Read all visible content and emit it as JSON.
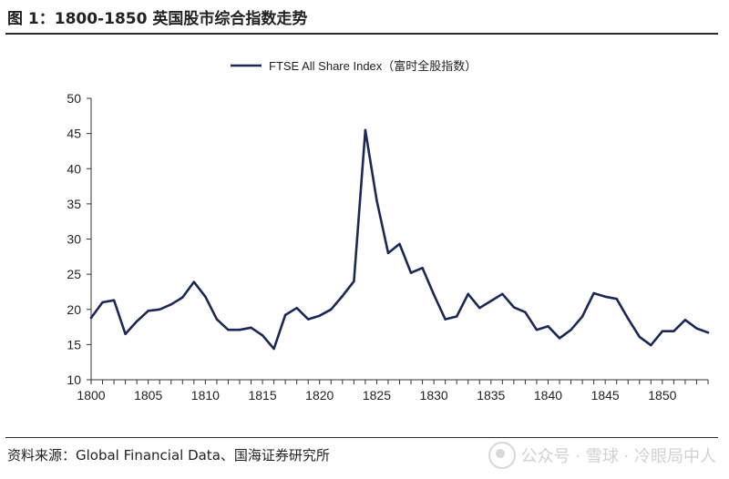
{
  "figure": {
    "title": "图 1：1800-1850 英国股市综合指数走势",
    "source": "资料来源：Global Financial Data、国海证券研究所",
    "watermark": "公众号 · 雪球 · 冷眼局中人"
  },
  "chart_data": {
    "type": "line",
    "title": "",
    "xlabel": "",
    "ylabel": "",
    "xlim": [
      1800,
      1854
    ],
    "ylim": [
      10,
      50
    ],
    "x_ticks": [
      1800,
      1805,
      1810,
      1815,
      1820,
      1825,
      1830,
      1835,
      1840,
      1845,
      1850
    ],
    "y_ticks": [
      10,
      15,
      20,
      25,
      30,
      35,
      40,
      45,
      50
    ],
    "grid": false,
    "legend": "top-center",
    "color": "#1a2858",
    "series": [
      {
        "name": "FTSE All Share Index（富时全股指数）",
        "x": [
          1800,
          1801,
          1802,
          1803,
          1804,
          1805,
          1806,
          1807,
          1808,
          1809,
          1810,
          1811,
          1812,
          1813,
          1814,
          1815,
          1816,
          1817,
          1818,
          1819,
          1820,
          1821,
          1822,
          1823,
          1824,
          1825,
          1826,
          1827,
          1828,
          1829,
          1830,
          1831,
          1832,
          1833,
          1834,
          1835,
          1836,
          1837,
          1838,
          1839,
          1840,
          1841,
          1842,
          1843,
          1844,
          1845,
          1846,
          1847,
          1848,
          1849,
          1850,
          1851,
          1852,
          1853,
          1854
        ],
        "values": [
          18.8,
          21.0,
          21.3,
          16.5,
          18.3,
          19.8,
          20.0,
          20.7,
          21.7,
          23.9,
          21.8,
          18.6,
          17.1,
          17.1,
          17.4,
          16.3,
          14.4,
          19.2,
          20.2,
          18.6,
          19.1,
          20.0,
          21.9,
          24.0,
          45.5,
          35.5,
          28.0,
          29.3,
          25.2,
          25.9,
          22.1,
          18.6,
          19.0,
          22.2,
          20.2,
          21.2,
          22.2,
          20.3,
          19.6,
          17.1,
          17.6,
          15.9,
          17.1,
          19.0,
          22.3,
          21.8,
          21.5,
          18.7,
          16.1,
          14.9,
          16.9,
          16.9,
          18.5,
          17.3,
          16.7
        ]
      }
    ]
  }
}
